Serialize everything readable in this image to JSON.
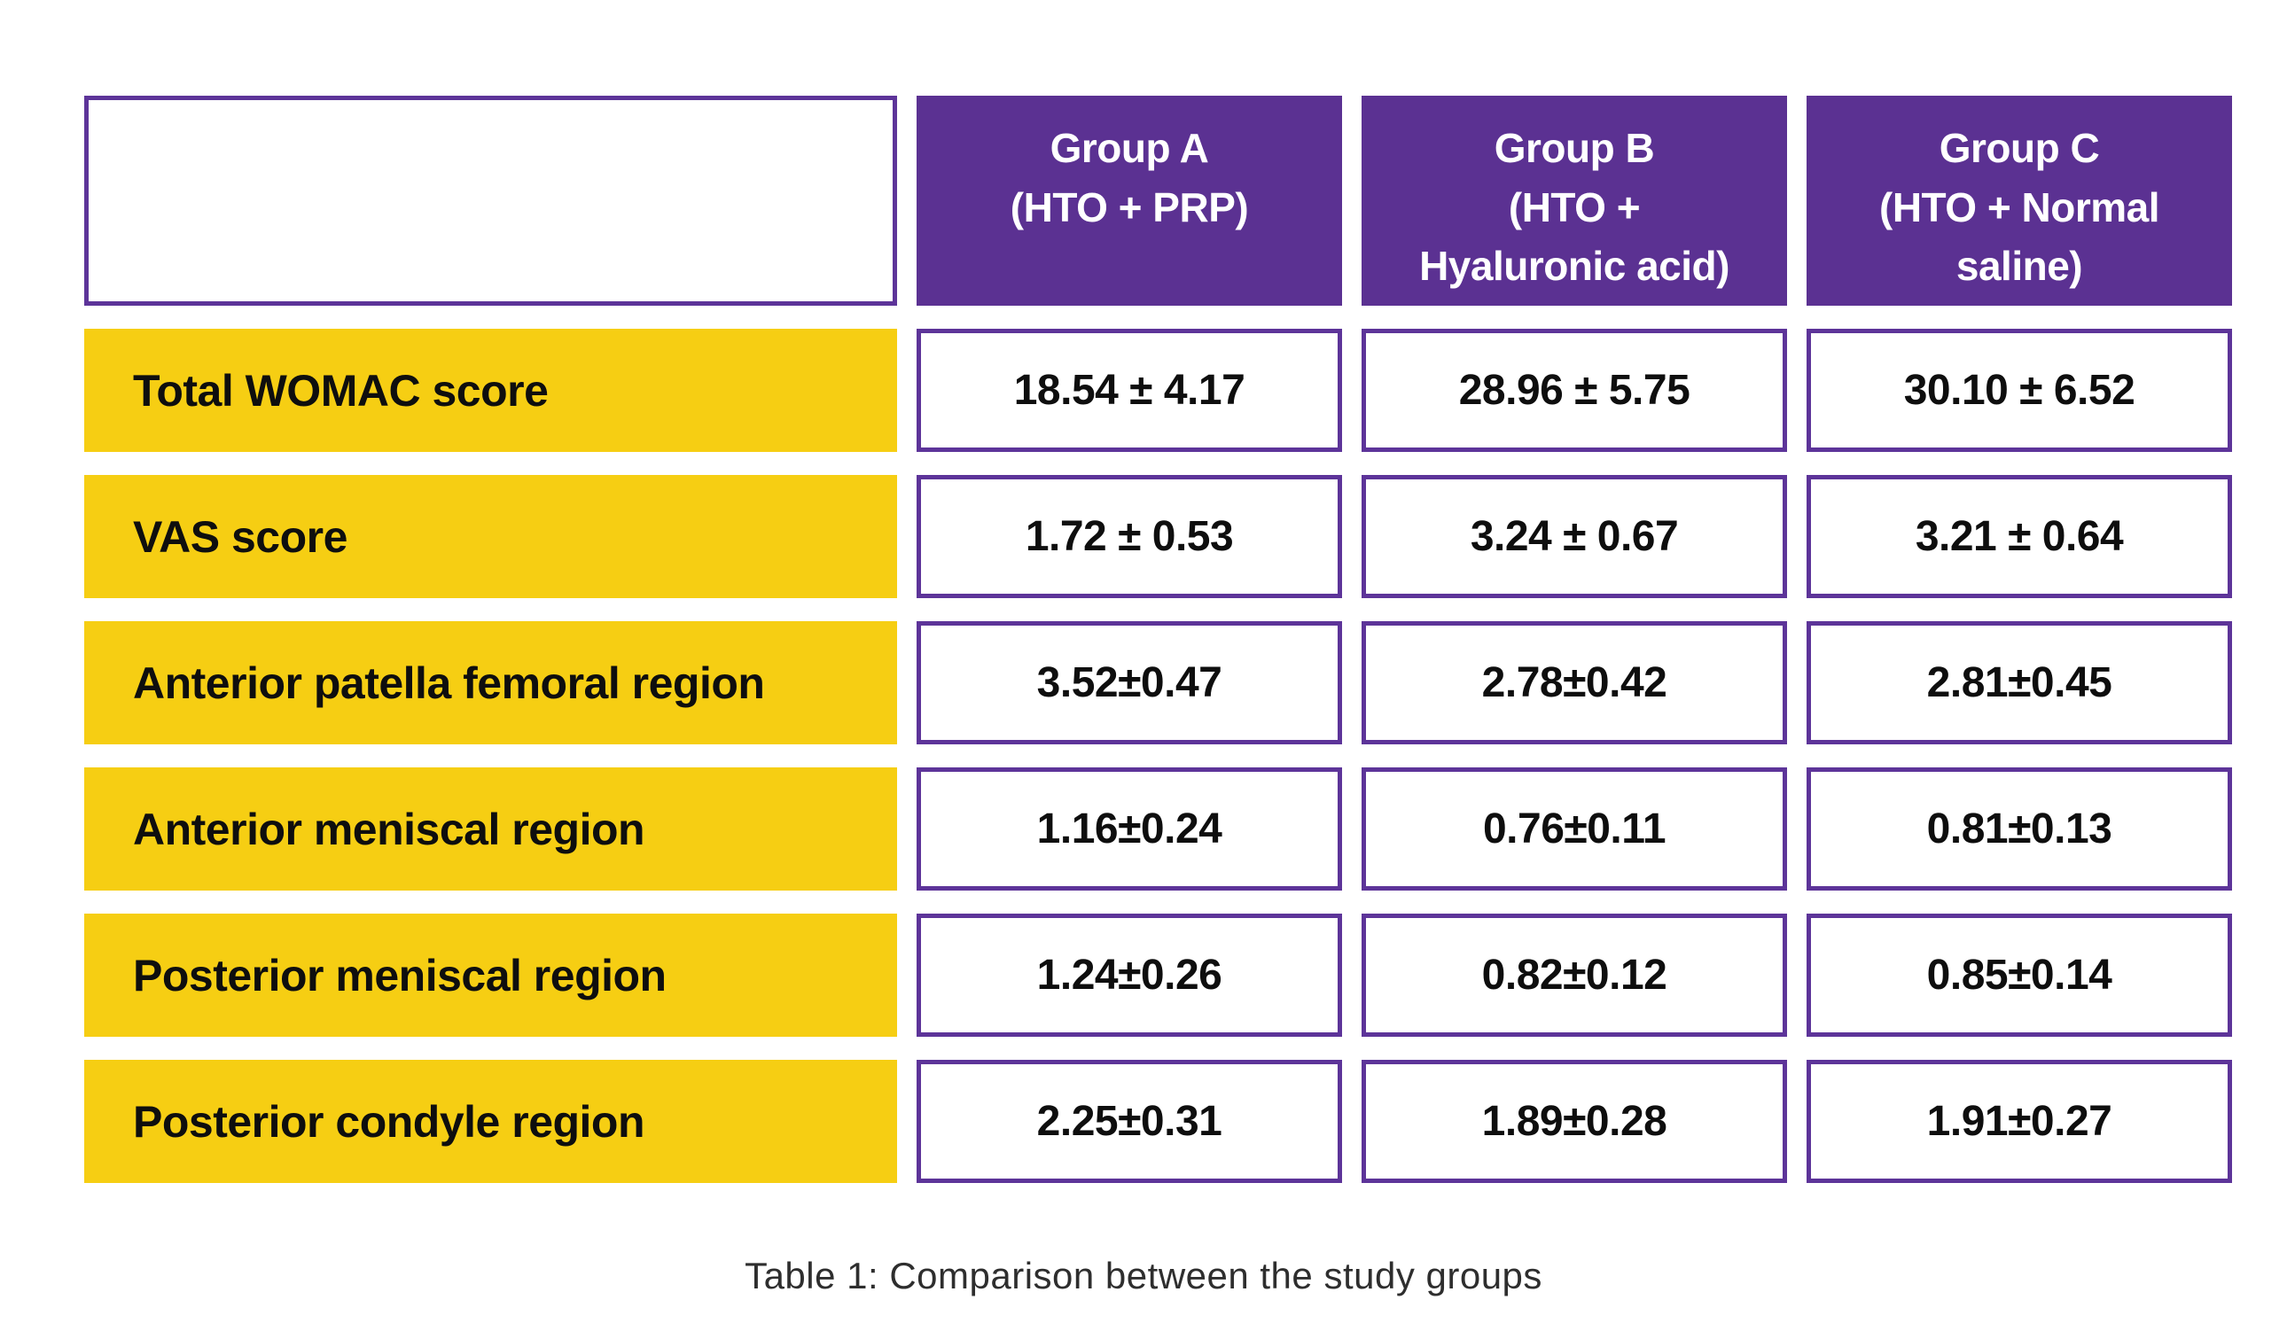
{
  "chart_data": {
    "type": "table",
    "title": "Table 1: Comparison between the study groups",
    "columns": [
      "",
      "Group A (HTO + PRP)",
      "Group B (HTO + Hyaluronic acid)",
      "Group C (HTO + Normal saline)"
    ],
    "rows": [
      [
        "Total WOMAC score",
        "18.54 ± 4.17",
        "28.96 ± 5.75",
        "30.10 ± 6.52"
      ],
      [
        "VAS score",
        "1.72 ± 0.53",
        "3.24 ± 0.67",
        "3.21 ± 0.64"
      ],
      [
        "Anterior patella femoral region",
        "3.52±0.47",
        "2.78±0.42",
        "2.81±0.45"
      ],
      [
        "Anterior meniscal region",
        "1.16±0.24",
        "0.76±0.11",
        "0.81±0.13"
      ],
      [
        "Posterior meniscal region",
        "1.24±0.26",
        "0.82±0.12",
        "0.85±0.14"
      ],
      [
        "Posterior condyle region",
        "2.25±0.31",
        "1.89±0.28",
        "1.91±0.27"
      ]
    ]
  },
  "table": {
    "columns": [
      {
        "label": "Group A\n(HTO + PRP)"
      },
      {
        "label": "Group B\n(HTO +\nHyaluronic acid)"
      },
      {
        "label": "Group C\n(HTO + Normal\nsaline)"
      }
    ],
    "rows": [
      {
        "label": "Total WOMAC score",
        "values": [
          "18.54 ± 4.17",
          "28.96 ± 5.75",
          "30.10 ± 6.52"
        ]
      },
      {
        "label": "VAS score",
        "values": [
          "1.72 ± 0.53",
          "3.24 ± 0.67",
          "3.21 ± 0.64"
        ]
      },
      {
        "label": "Anterior patella femoral region",
        "values": [
          "3.52±0.47",
          "2.78±0.42",
          "2.81±0.45"
        ]
      },
      {
        "label": "Anterior meniscal region",
        "values": [
          "1.16±0.24",
          "0.76±0.11",
          "0.81±0.13"
        ]
      },
      {
        "label": "Posterior meniscal region",
        "values": [
          "1.24±0.26",
          "0.82±0.12",
          "0.85±0.14"
        ]
      },
      {
        "label": "Posterior condyle region",
        "values": [
          "2.25±0.31",
          "1.89±0.28",
          "1.91±0.27"
        ]
      }
    ],
    "caption": "Table 1: Comparison between the study groups"
  },
  "colors": {
    "header_bg": "#5b3192",
    "cell_border": "#5d3499",
    "row_label_bg": "#f6ce13",
    "header_text": "#ffffff",
    "body_text": "#0e0e0e",
    "caption_text": "#2e2e2e",
    "page_bg": "#ffffff"
  }
}
